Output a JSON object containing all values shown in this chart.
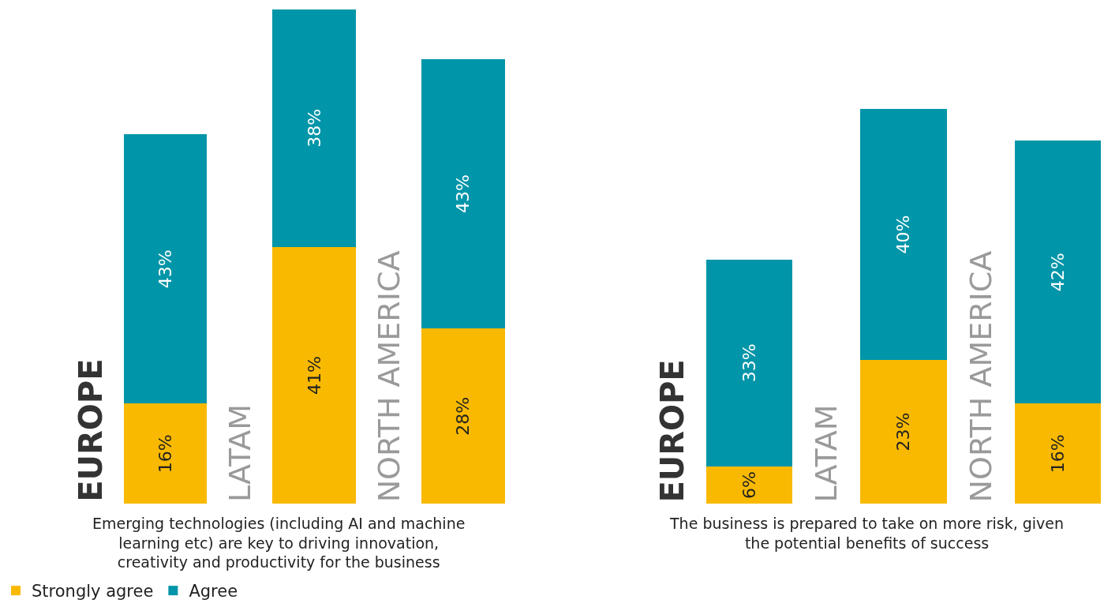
{
  "chart_data": [
    {
      "type": "bar",
      "stacked": true,
      "xlabel": "Emerging technologies (including AI and machine learning etc) are key to driving innovation, creativity and productivity for the business",
      "categories": [
        "EUROPE",
        "LATAM",
        "NORTH AMERICA"
      ],
      "tick_labels": "x",
      "legend": "bottom left",
      "series": [
        {
          "name": "Strongly agree",
          "color": "#f9b900",
          "values": [
            16,
            41,
            28
          ],
          "value_labels": [
            "16%",
            "41%",
            "28%"
          ]
        },
        {
          "name": "Agree",
          "color": "#0095a8",
          "values": [
            43,
            38,
            43
          ],
          "value_labels": [
            "43%",
            "38%",
            "43%"
          ]
        }
      ]
    },
    {
      "type": "bar",
      "stacked": true,
      "xlabel": "The business is prepared to take on more risk, given the potential benefits of success",
      "categories": [
        "EUROPE",
        "LATAM",
        "NORTH AMERICA"
      ],
      "tick_labels": "x",
      "series": [
        {
          "color": "#f9b900",
          "values": [
            6,
            23,
            16
          ],
          "value_labels": [
            "6%",
            "23%",
            "16%"
          ]
        },
        {
          "color": "#0095a8",
          "values": [
            33,
            40,
            42
          ],
          "value_labels": [
            "33%",
            "40%",
            "42%"
          ]
        }
      ]
    }
  ]
}
